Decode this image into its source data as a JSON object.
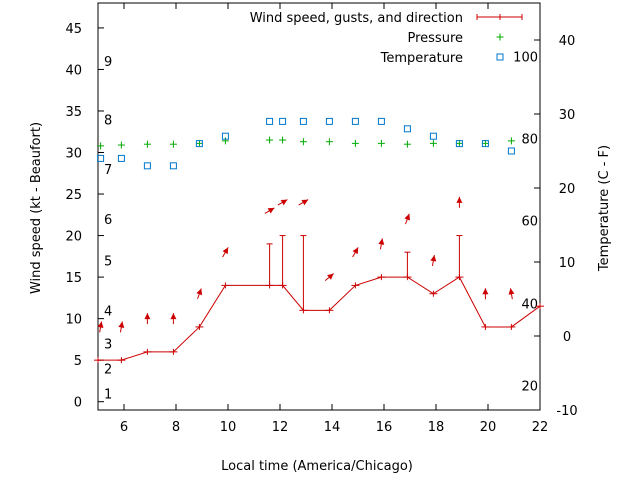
{
  "chart_data": {
    "type": "line",
    "xlabel": "Local time (America/Chicago)",
    "ylabel_left": "Wind speed (kt - Beaufort)",
    "ylabel_right": "Temperature (C - F)",
    "xlim": [
      5,
      22
    ],
    "ylim_left": [
      -1,
      48
    ],
    "ylim_right": [
      -10,
      45
    ],
    "x_ticks": [
      6,
      8,
      10,
      12,
      14,
      16,
      18,
      20,
      22
    ],
    "y_left_ticks": [
      0,
      5,
      10,
      15,
      20,
      25,
      30,
      35,
      40,
      45
    ],
    "y_right_ticks": [
      -10,
      0,
      10,
      20,
      30,
      40
    ],
    "beaufort_ticks": [
      {
        "label": "1",
        "kt": 1
      },
      {
        "label": "2",
        "kt": 4
      },
      {
        "label": "3",
        "kt": 7
      },
      {
        "label": "4",
        "kt": 11
      },
      {
        "label": "5",
        "kt": 17
      },
      {
        "label": "6",
        "kt": 22
      },
      {
        "label": "7",
        "kt": 28
      },
      {
        "label": "8",
        "kt": 34
      },
      {
        "label": "9",
        "kt": 41
      }
    ],
    "fahrenheit_ticks": [
      {
        "label": "20",
        "c": -6.7
      },
      {
        "label": "40",
        "c": 4.4
      },
      {
        "label": "60",
        "c": 15.6
      },
      {
        "label": "80",
        "c": 26.7
      },
      {
        "label": "100",
        "c": 37.8
      }
    ],
    "legend": [
      {
        "label": "Wind speed, gusts, and direction",
        "marker": "line-errorbar",
        "color": "#cc0000"
      },
      {
        "label": "Pressure",
        "marker": "plus",
        "color": "#00aa00"
      },
      {
        "label": "Temperature",
        "marker": "square",
        "color": "#0077cc"
      }
    ],
    "series": [
      {
        "name": "Wind speed",
        "axis": "left",
        "color": "#cc0000",
        "x": [
          5.0,
          5.9,
          6.9,
          7.9,
          8.9,
          9.9,
          11.6,
          12.1,
          12.9,
          13.9,
          14.9,
          15.9,
          16.9,
          17.9,
          18.9,
          19.9,
          20.9,
          22.0
        ],
        "y": [
          5,
          5,
          6,
          6,
          9,
          14,
          14,
          14,
          11,
          11,
          14,
          15,
          15,
          13,
          15,
          9,
          9,
          11.5
        ],
        "gust": [
          null,
          null,
          null,
          null,
          null,
          null,
          19,
          20,
          20,
          null,
          null,
          null,
          18,
          null,
          20,
          null,
          null,
          null
        ]
      },
      {
        "name": "Wind direction arrows",
        "axis": "left",
        "color": "#cc0000",
        "x": [
          5.1,
          5.9,
          6.9,
          7.9,
          8.9,
          9.9,
          11.6,
          12.1,
          12.9,
          13.9,
          14.9,
          15.9,
          16.9,
          17.9,
          18.9,
          19.9,
          20.9
        ],
        "y": [
          9,
          9,
          10,
          10,
          13,
          18,
          23,
          24,
          24,
          15,
          18,
          19,
          22,
          17,
          24,
          13,
          13
        ],
        "direction_deg": [
          100,
          100,
          90,
          90,
          110,
          120,
          150,
          150,
          150,
          140,
          120,
          100,
          110,
          100,
          90,
          90,
          80
        ]
      },
      {
        "name": "Pressure",
        "axis": "left",
        "color": "#00aa00",
        "x": [
          5.1,
          5.9,
          6.9,
          7.9,
          8.9,
          9.9,
          11.6,
          12.1,
          12.9,
          13.9,
          14.9,
          15.9,
          16.9,
          17.9,
          18.9,
          19.9,
          20.9
        ],
        "y": [
          30.8,
          30.9,
          31.0,
          31.0,
          31.1,
          31.4,
          31.5,
          31.5,
          31.3,
          31.3,
          31.1,
          31.1,
          31.0,
          31.1,
          31.1,
          31.1,
          31.4
        ]
      },
      {
        "name": "Temperature",
        "axis": "right",
        "color": "#0077cc",
        "x": [
          5.1,
          5.9,
          6.9,
          7.9,
          8.9,
          9.9,
          11.6,
          12.1,
          12.9,
          13.9,
          14.9,
          15.9,
          16.9,
          17.9,
          18.9,
          19.9,
          20.9
        ],
        "y": [
          24,
          24,
          23,
          23,
          26,
          27,
          29,
          29,
          29,
          29,
          29,
          29,
          28,
          27,
          26,
          26,
          25
        ]
      }
    ]
  }
}
